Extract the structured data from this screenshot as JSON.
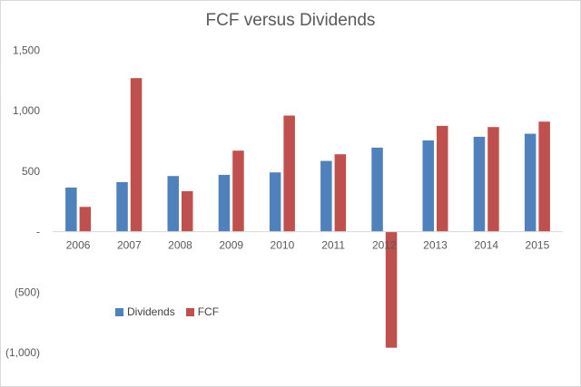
{
  "chart_data": {
    "type": "bar",
    "title": "FCF versus Dividends",
    "categories": [
      "2006",
      "2007",
      "2008",
      "2009",
      "2010",
      "2011",
      "2012",
      "2013",
      "2014",
      "2015"
    ],
    "series": [
      {
        "name": "Dividends",
        "color": "#4f81bd",
        "values": [
          365,
          410,
          460,
          470,
          490,
          585,
          695,
          755,
          785,
          810
        ]
      },
      {
        "name": "FCF",
        "color": "#c0504d",
        "values": [
          205,
          1270,
          335,
          670,
          960,
          640,
          -960,
          875,
          865,
          910
        ]
      }
    ],
    "y_ticks": [
      1500,
      1000,
      500,
      0,
      -500,
      -1000
    ],
    "y_tick_labels": [
      "1,500",
      "1,000",
      "500",
      "-",
      "(500)",
      "(1,000)"
    ],
    "ylim": [
      -1000,
      1500
    ],
    "grid": false,
    "legend_position": "lower-left"
  }
}
